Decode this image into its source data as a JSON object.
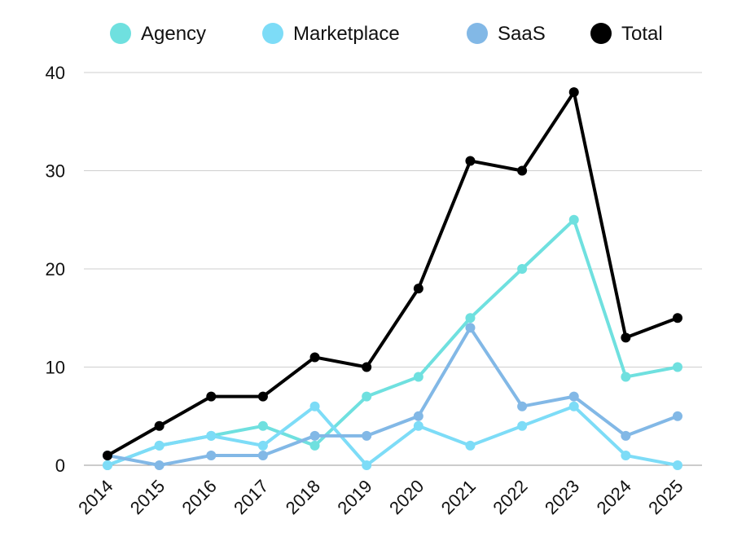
{
  "chart_data": {
    "type": "line",
    "categories": [
      "2014",
      "2015",
      "2016",
      "2017",
      "2018",
      "2019",
      "2020",
      "2021",
      "2022",
      "2023",
      "2024",
      "2025"
    ],
    "series": [
      {
        "name": "Agency",
        "color": "#6FE0DF",
        "values": [
          0,
          2,
          3,
          4,
          2,
          7,
          9,
          15,
          20,
          25,
          9,
          10
        ]
      },
      {
        "name": "Marketplace",
        "color": "#7DDCF7",
        "values": [
          0,
          2,
          3,
          2,
          6,
          0,
          4,
          2,
          4,
          6,
          1,
          0
        ]
      },
      {
        "name": "SaaS",
        "color": "#82B8E6",
        "values": [
          1,
          0,
          1,
          1,
          3,
          3,
          5,
          14,
          6,
          7,
          3,
          5
        ]
      },
      {
        "name": "Total",
        "color": "#000000",
        "values": [
          1,
          4,
          7,
          7,
          11,
          10,
          18,
          31,
          30,
          38,
          13,
          15
        ]
      }
    ],
    "yticks": [
      "0",
      "10",
      "20",
      "30",
      "40"
    ],
    "ylim": [
      0,
      40
    ],
    "grid": true,
    "legend_position": "top"
  }
}
